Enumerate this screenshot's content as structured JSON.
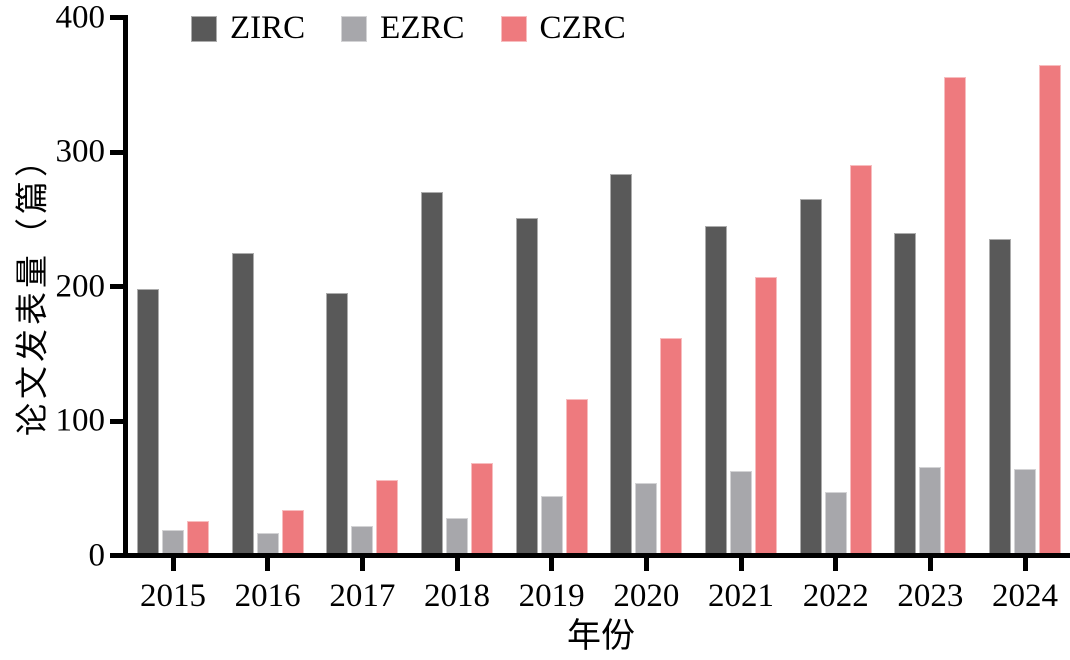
{
  "chart_data": {
    "type": "bar",
    "title": "",
    "categories": [
      "2015",
      "2016",
      "2017",
      "2018",
      "2019",
      "2020",
      "2021",
      "2022",
      "2023",
      "2024"
    ],
    "series": [
      {
        "name": "ZIRC",
        "color": "#595959",
        "values": [
          198,
          225,
          195,
          270,
          251,
          284,
          245,
          265,
          240,
          235
        ]
      },
      {
        "name": "EZRC",
        "color": "#a7a7ab",
        "values": [
          19,
          17,
          22,
          28,
          44,
          54,
          63,
          47,
          66,
          64
        ]
      },
      {
        "name": "CZRC",
        "color": "#ee7a7e",
        "values": [
          26,
          34,
          56,
          69,
          116,
          162,
          207,
          290,
          356,
          365
        ]
      }
    ],
    "xlabel": "年份",
    "ylabel": "论文发表量（篇）",
    "ylim": [
      0,
      400
    ],
    "yticks": [
      0,
      100,
      200,
      300,
      400
    ],
    "y_tick_labels": [
      "0",
      "100",
      "200",
      "300",
      "400"
    ],
    "grid": false,
    "legend_position": "top-left",
    "axis_color": "#000000",
    "background_color": "#ffffff"
  }
}
